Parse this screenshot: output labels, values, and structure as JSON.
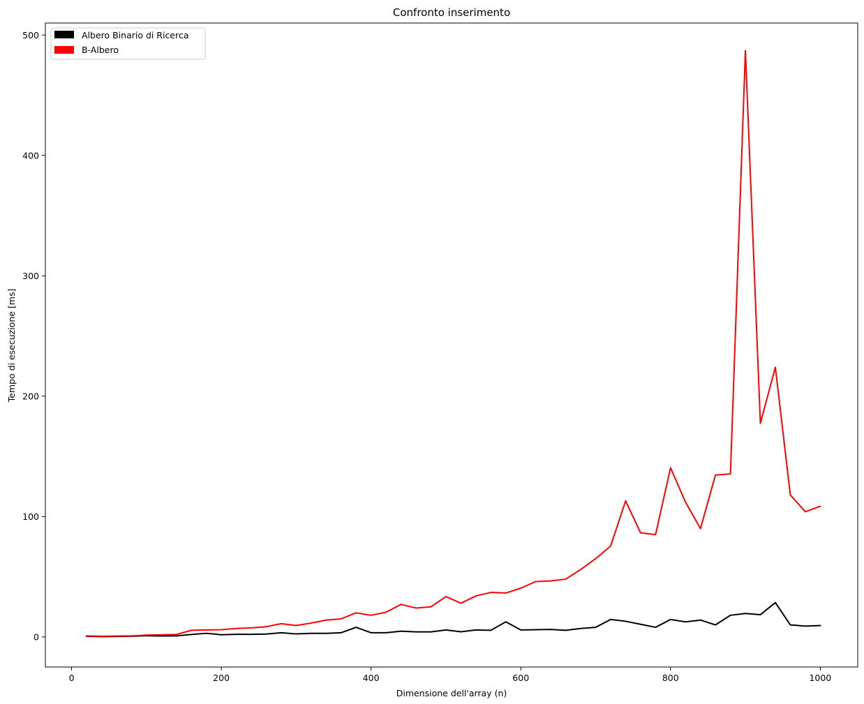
{
  "chart_data": {
    "type": "line",
    "title": "Confronto inserimento",
    "xlabel": "Dimensione dell'array (n)",
    "ylabel": "Tempo di esecuzione [ms]",
    "xlim": [
      -35,
      1050
    ],
    "ylim": [
      -25,
      510
    ],
    "xticks": [
      0,
      200,
      400,
      600,
      800,
      1000
    ],
    "yticks": [
      0,
      100,
      200,
      300,
      400,
      500
    ],
    "grid": false,
    "legend_position": "upper-left",
    "x": [
      20,
      40,
      60,
      80,
      100,
      120,
      140,
      160,
      180,
      200,
      220,
      240,
      260,
      280,
      300,
      320,
      340,
      360,
      380,
      400,
      420,
      440,
      460,
      480,
      500,
      520,
      540,
      560,
      580,
      600,
      620,
      640,
      660,
      680,
      700,
      720,
      740,
      760,
      780,
      800,
      820,
      840,
      860,
      880,
      900,
      920,
      940,
      960,
      980,
      1000
    ],
    "series": [
      {
        "name": "Albero Binario di Ricerca",
        "color": "#000000",
        "values": [
          0.5,
          0.3,
          0.4,
          0.6,
          1.0,
          0.8,
          0.9,
          2.0,
          3.0,
          1.8,
          2.2,
          2.2,
          2.4,
          3.5,
          2.5,
          3.0,
          3.0,
          3.5,
          8.0,
          3.5,
          3.5,
          4.8,
          4.2,
          4.2,
          5.8,
          4.3,
          5.8,
          5.5,
          12.5,
          5.8,
          6.0,
          6.2,
          5.5,
          7.0,
          8.0,
          14.5,
          13.0,
          10.5,
          8.0,
          14.5,
          12.5,
          14.0,
          10.0,
          18.0,
          19.5,
          18.5,
          28.5,
          10.0,
          9.0,
          9.5
        ]
      },
      {
        "name": "B-Albero",
        "color": "#ff0000",
        "values": [
          0.8,
          0.6,
          0.7,
          0.9,
          1.5,
          1.8,
          2.0,
          5.5,
          5.8,
          6.0,
          7.0,
          7.5,
          8.5,
          11.0,
          9.5,
          11.5,
          14.0,
          15.0,
          20.0,
          18.0,
          20.5,
          27.0,
          24.0,
          25.0,
          33.5,
          28.0,
          34.0,
          37.0,
          36.5,
          40.5,
          46.0,
          46.5,
          48.0,
          56.0,
          65.0,
          75.5,
          113.0,
          86.5,
          85.0,
          140.5,
          112.0,
          90.0,
          134.5,
          135.5,
          487.0,
          177.5,
          224.0,
          118.0,
          104.0,
          108.5
        ]
      }
    ]
  }
}
